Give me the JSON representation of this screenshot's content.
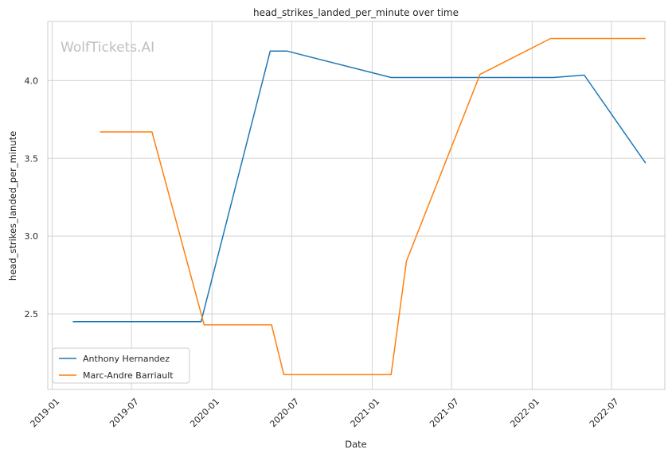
{
  "chart_data": {
    "type": "line",
    "title": "head_strikes_landed_per_minute over time",
    "xlabel": "Date",
    "ylabel": "head_strikes_landed_per_minute",
    "watermark": "WolfTickets.AI",
    "xlim": [
      "2018-12-22",
      "2022-10-31"
    ],
    "ylim": [
      2.015,
      4.38
    ],
    "x_ticks": [
      "2019-01",
      "2019-07",
      "2020-01",
      "2020-07",
      "2021-01",
      "2021-07",
      "2022-01",
      "2022-07"
    ],
    "y_ticks": [
      "2.5",
      "3.0",
      "3.5",
      "4.0"
    ],
    "grid": true,
    "legend_position": "lower-left",
    "series": [
      {
        "name": "Anthony Hernandez",
        "color": "#1f77b4",
        "x": [
          "2019-02-17",
          "2019-12-07",
          "2020-05-13",
          "2020-06-20",
          "2021-02-13",
          "2022-02-19",
          "2022-04-30",
          "2022-09-17"
        ],
        "y": [
          2.45,
          2.45,
          4.19,
          4.19,
          4.02,
          4.02,
          4.035,
          3.47
        ]
      },
      {
        "name": "Marc-Andre Barriault",
        "color": "#ff7f0e",
        "x": [
          "2019-04-20",
          "2019-08-17",
          "2019-12-14",
          "2020-05-16",
          "2020-06-13",
          "2021-02-13",
          "2021-03-20",
          "2021-09-04",
          "2022-02-12",
          "2022-04-23",
          "2022-09-17"
        ],
        "y": [
          3.67,
          3.67,
          2.43,
          2.43,
          2.11,
          2.11,
          2.84,
          4.04,
          4.27,
          4.27,
          4.27
        ]
      }
    ]
  }
}
